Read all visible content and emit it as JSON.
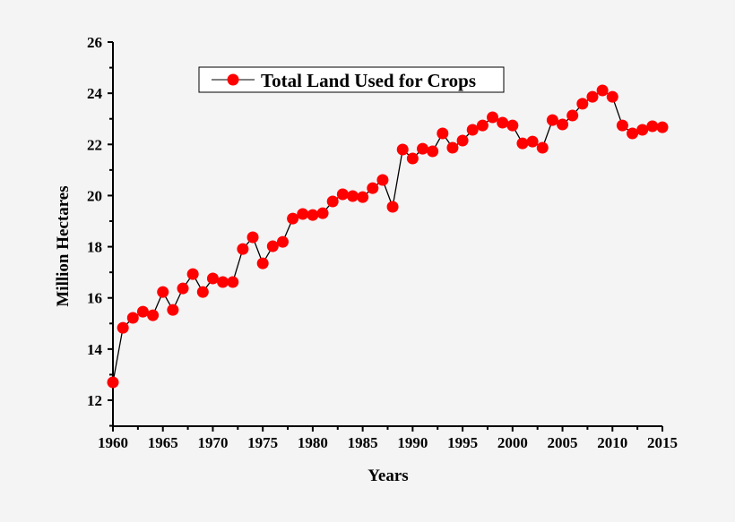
{
  "chart_data": {
    "type": "line",
    "xlabel": "Years",
    "ylabel": "Million Hectares",
    "xlim": [
      1960,
      2015
    ],
    "ylim": [
      11,
      26
    ],
    "xticks": [
      "1960",
      "1965",
      "1970",
      "1975",
      "1980",
      "1985",
      "1990",
      "1995",
      "2000",
      "2005",
      "2010",
      "2015"
    ],
    "yticks": [
      "12",
      "14",
      "16",
      "18",
      "20",
      "22",
      "24",
      "26"
    ],
    "grid": false,
    "legend_position": "top-left",
    "series": [
      {
        "name": "Total Land Used for Crops",
        "color": "#ff0000",
        "line_color": "#000000",
        "x": [
          1960,
          1961,
          1962,
          1963,
          1964,
          1965,
          1966,
          1967,
          1968,
          1969,
          1970,
          1971,
          1972,
          1973,
          1974,
          1975,
          1976,
          1977,
          1978,
          1979,
          1980,
          1981,
          1982,
          1983,
          1984,
          1985,
          1986,
          1987,
          1988,
          1989,
          1990,
          1991,
          1992,
          1993,
          1994,
          1995,
          1996,
          1997,
          1998,
          1999,
          2000,
          2001,
          2002,
          2003,
          2004,
          2005,
          2006,
          2007,
          2008,
          2009,
          2010,
          2011,
          2012,
          2013,
          2014,
          2015
        ],
        "y": [
          12.7,
          14.83,
          15.22,
          15.46,
          15.32,
          16.23,
          15.53,
          16.37,
          16.93,
          16.23,
          16.76,
          16.62,
          16.62,
          17.91,
          18.37,
          17.35,
          18.02,
          18.19,
          19.1,
          19.28,
          19.24,
          19.31,
          19.77,
          20.05,
          19.98,
          19.94,
          20.29,
          20.61,
          19.56,
          21.8,
          21.45,
          21.83,
          21.73,
          22.43,
          21.87,
          22.15,
          22.57,
          22.74,
          23.06,
          22.85,
          22.74,
          22.04,
          22.11,
          21.87,
          22.95,
          22.78,
          23.13,
          23.59,
          23.86,
          24.11,
          23.86,
          22.74,
          22.43,
          22.57,
          22.71,
          22.67
        ]
      }
    ]
  }
}
